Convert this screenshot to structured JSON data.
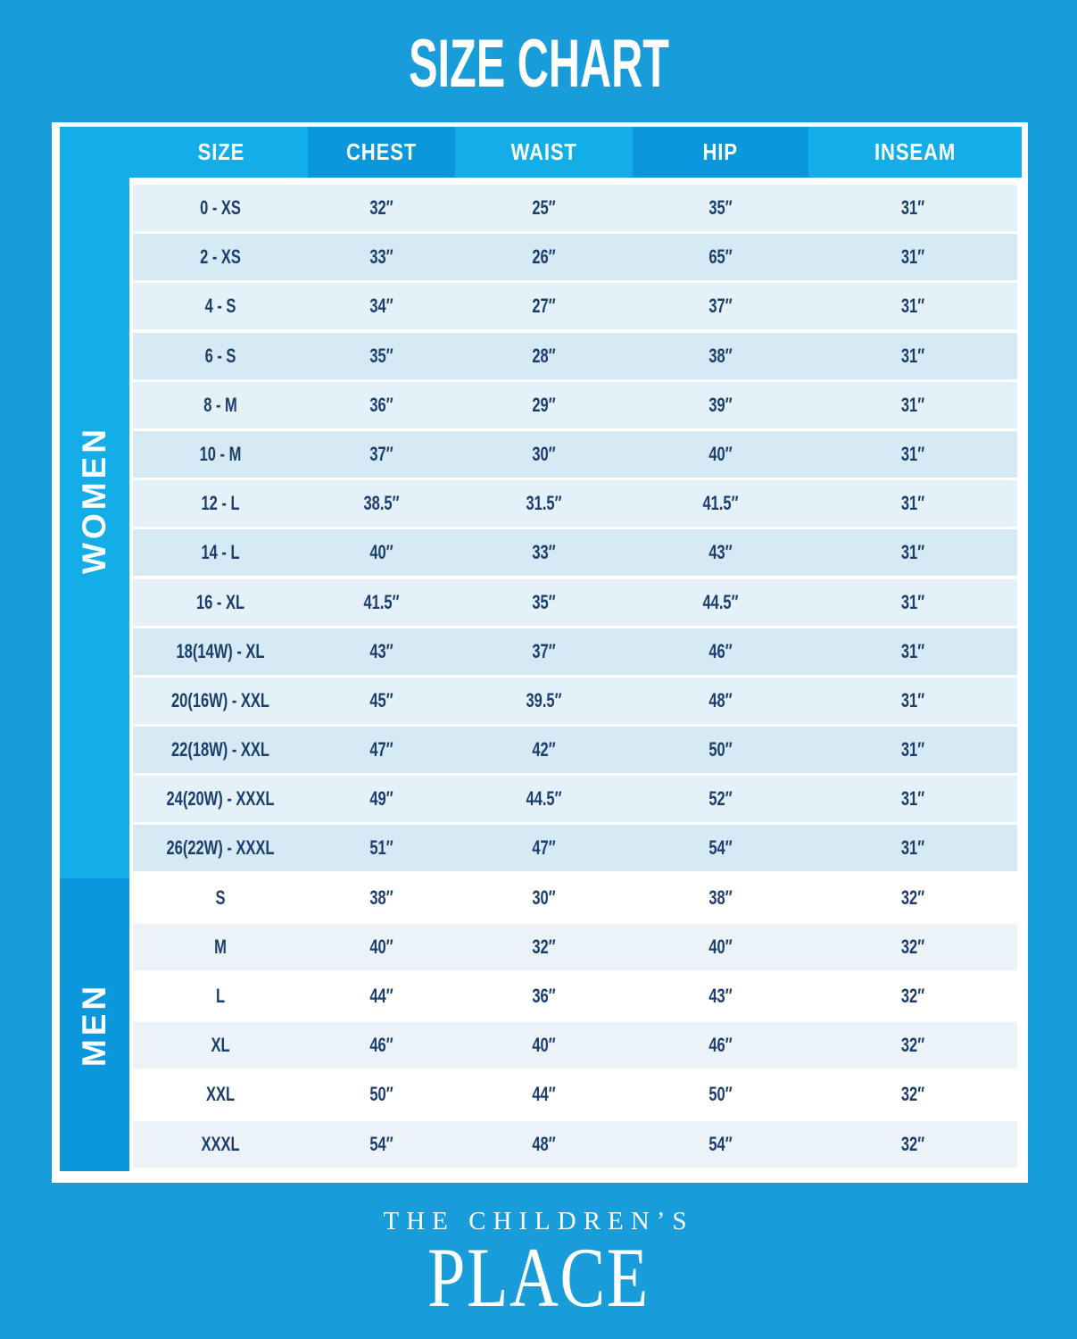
{
  "title": "SIZE CHART",
  "brand": {
    "line1": "THE CHILDREN’S",
    "line2": "PLACE"
  },
  "colors": {
    "background": "#189CDA",
    "band_light": "#13AEE8",
    "band_dark": "#0A97DB",
    "card": "#FFFFFF",
    "row_women_light": "#E4F1F9",
    "row_women_dark": "#D6EAF5",
    "row_men_white": "#FFFFFF",
    "row_men_tint": "#EBF3F8",
    "text_navy": "#1C3E6D",
    "text_white": "#FFFFFF"
  },
  "table": {
    "columns": [
      "SIZE",
      "CHEST",
      "WAIST",
      "HIP",
      "INSEAM"
    ],
    "column_keys": [
      "size",
      "chest",
      "waist",
      "hip",
      "inseam"
    ],
    "sections": [
      {
        "label": "WOMEN",
        "rows": [
          [
            "0 - XS",
            "32″",
            "25″",
            "35″",
            "31″"
          ],
          [
            "2 - XS",
            "33″",
            "26″",
            "65″",
            "31″"
          ],
          [
            "4 - S",
            "34″",
            "27″",
            "37″",
            "31″"
          ],
          [
            "6 - S",
            "35″",
            "28″",
            "38″",
            "31″"
          ],
          [
            "8 - M",
            "36″",
            "29″",
            "39″",
            "31″"
          ],
          [
            "10 - M",
            "37″",
            "30″",
            "40″",
            "31″"
          ],
          [
            "12 - L",
            "38.5″",
            "31.5″",
            "41.5″",
            "31″"
          ],
          [
            "14 - L",
            "40″",
            "33″",
            "43″",
            "31″"
          ],
          [
            "16 - XL",
            "41.5″",
            "35″",
            "44.5″",
            "31″"
          ],
          [
            "18(14W) - XL",
            "43″",
            "37″",
            "46″",
            "31″"
          ],
          [
            "20(16W) - XXL",
            "45″",
            "39.5″",
            "48″",
            "31″"
          ],
          [
            "22(18W) - XXL",
            "47″",
            "42″",
            "50″",
            "31″"
          ],
          [
            "24(20W) - XXXL",
            "49″",
            "44.5″",
            "52″",
            "31″"
          ],
          [
            "26(22W) - XXXL",
            "51″",
            "47″",
            "54″",
            "31″"
          ]
        ]
      },
      {
        "label": "MEN",
        "rows": [
          [
            "S",
            "38″",
            "30″",
            "38″",
            "32″"
          ],
          [
            "M",
            "40″",
            "32″",
            "40″",
            "32″"
          ],
          [
            "L",
            "44″",
            "36″",
            "43″",
            "32″"
          ],
          [
            "XL",
            "46″",
            "40″",
            "46″",
            "32″"
          ],
          [
            "XXL",
            "50″",
            "44″",
            "50″",
            "32″"
          ],
          [
            "XXXL",
            "54″",
            "48″",
            "54″",
            "32″"
          ]
        ]
      }
    ]
  },
  "chart_data": {
    "type": "table",
    "title": "SIZE CHART",
    "columns": [
      "SIZE",
      "CHEST",
      "WAIST",
      "HIP",
      "INSEAM"
    ],
    "units": "inches",
    "sections": [
      {
        "name": "WOMEN",
        "rows": [
          {
            "size": "0 - XS",
            "chest": 32,
            "waist": 25,
            "hip": 35,
            "inseam": 31
          },
          {
            "size": "2 - XS",
            "chest": 33,
            "waist": 26,
            "hip": 65,
            "inseam": 31
          },
          {
            "size": "4 - S",
            "chest": 34,
            "waist": 27,
            "hip": 37,
            "inseam": 31
          },
          {
            "size": "6 - S",
            "chest": 35,
            "waist": 28,
            "hip": 38,
            "inseam": 31
          },
          {
            "size": "8 - M",
            "chest": 36,
            "waist": 29,
            "hip": 39,
            "inseam": 31
          },
          {
            "size": "10 - M",
            "chest": 37,
            "waist": 30,
            "hip": 40,
            "inseam": 31
          },
          {
            "size": "12 - L",
            "chest": 38.5,
            "waist": 31.5,
            "hip": 41.5,
            "inseam": 31
          },
          {
            "size": "14 - L",
            "chest": 40,
            "waist": 33,
            "hip": 43,
            "inseam": 31
          },
          {
            "size": "16 - XL",
            "chest": 41.5,
            "waist": 35,
            "hip": 44.5,
            "inseam": 31
          },
          {
            "size": "18(14W) - XL",
            "chest": 43,
            "waist": 37,
            "hip": 46,
            "inseam": 31
          },
          {
            "size": "20(16W) - XXL",
            "chest": 45,
            "waist": 39.5,
            "hip": 48,
            "inseam": 31
          },
          {
            "size": "22(18W) - XXL",
            "chest": 47,
            "waist": 42,
            "hip": 50,
            "inseam": 31
          },
          {
            "size": "24(20W) - XXXL",
            "chest": 49,
            "waist": 44.5,
            "hip": 52,
            "inseam": 31
          },
          {
            "size": "26(22W) - XXXL",
            "chest": 51,
            "waist": 47,
            "hip": 54,
            "inseam": 31
          }
        ]
      },
      {
        "name": "MEN",
        "rows": [
          {
            "size": "S",
            "chest": 38,
            "waist": 30,
            "hip": 38,
            "inseam": 32
          },
          {
            "size": "M",
            "chest": 40,
            "waist": 32,
            "hip": 40,
            "inseam": 32
          },
          {
            "size": "L",
            "chest": 44,
            "waist": 36,
            "hip": 43,
            "inseam": 32
          },
          {
            "size": "XL",
            "chest": 46,
            "waist": 40,
            "hip": 46,
            "inseam": 32
          },
          {
            "size": "XXL",
            "chest": 50,
            "waist": 44,
            "hip": 50,
            "inseam": 32
          },
          {
            "size": "XXXL",
            "chest": 54,
            "waist": 48,
            "hip": 54,
            "inseam": 32
          }
        ]
      }
    ]
  }
}
